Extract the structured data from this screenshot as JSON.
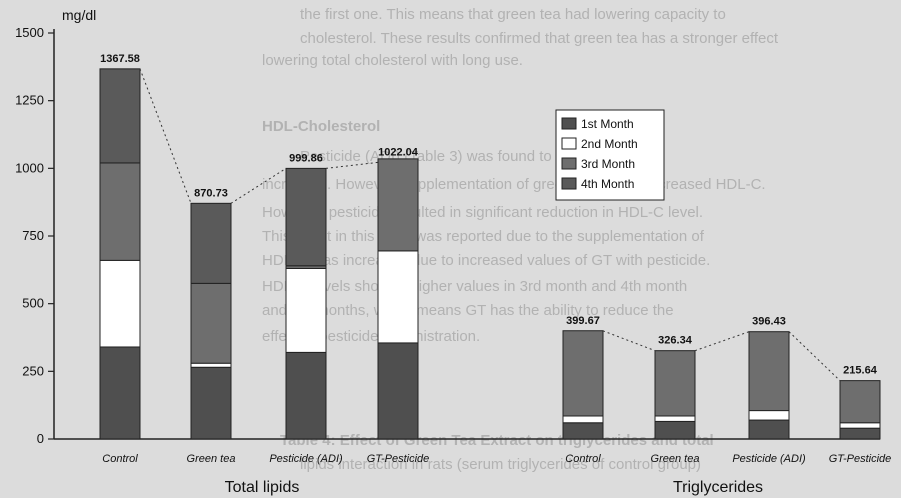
{
  "background_text": [
    "the first one. This means that green tea had lowering capacity to",
    "cholesterol. These results confirmed that green tea has a stronger effect",
    "lowering total cholesterol with long use.",
    "HDL-Cholesterol",
    "Pesticide (ADI) (Table 3) was found to reduce HDL-C",
    "increased. However, supplementation of green tea to rats increased HDL-C.",
    "However, pesticide resulted in significant reduction in HDL-C level.",
    "This result in this state was reported due to the supplementation of",
    "HDL-C was increased due to increased values of GT with pesticide.",
    "HDL-C levels showed higher values in 3rd month and 4th month",
    "and 4th months, which means GT has the ability to reduce the",
    "effect of pesticide administration.",
    "Table 4: Effect of Green Tea Extract on triglycerides and total",
    "lipids interaction in rats (serum triglycerides of control group)"
  ],
  "chart_data": {
    "type": "stacked-bar",
    "ylabel": "mg/dl",
    "ylim": [
      0,
      1500
    ],
    "yticks": [
      0,
      250,
      500,
      750,
      1000,
      1250,
      1500
    ],
    "legend_position": "center-right",
    "series": [
      {
        "name": "1st Month",
        "color": "#4f4f4f"
      },
      {
        "name": "2nd Month",
        "color": "#ffffff"
      },
      {
        "name": "3rd Month",
        "color": "#6e6e6e"
      },
      {
        "name": "4th Month",
        "color": "#5a5a5a"
      }
    ],
    "groups": [
      {
        "label": "Total lipids",
        "categories": [
          "Control",
          "Green tea",
          "Pesticide (ADI)",
          "GT-Pesticide"
        ],
        "totals": [
          "1367.58",
          "870.73",
          "999.86",
          "1022.04"
        ],
        "values": [
          [
            340,
            320,
            360,
            347.58
          ],
          [
            265,
            15,
            295,
            295.73
          ],
          [
            320,
            310,
            10,
            359.86
          ],
          [
            355,
            340,
            340,
            -12.96
          ]
        ]
      },
      {
        "label": "Triglycerides",
        "categories": [
          "Control",
          "Green tea",
          "Pesticide (ADI)",
          "GT-Pesticide"
        ],
        "totals": [
          "399.67",
          "326.34",
          "396.43",
          "215.64"
        ],
        "values": [
          [
            60,
            25,
            315,
            -0.33
          ],
          [
            65,
            20,
            241.34,
            0
          ],
          [
            70,
            35,
            291.43,
            0
          ],
          [
            40,
            20,
            155.64,
            0
          ]
        ]
      }
    ]
  }
}
